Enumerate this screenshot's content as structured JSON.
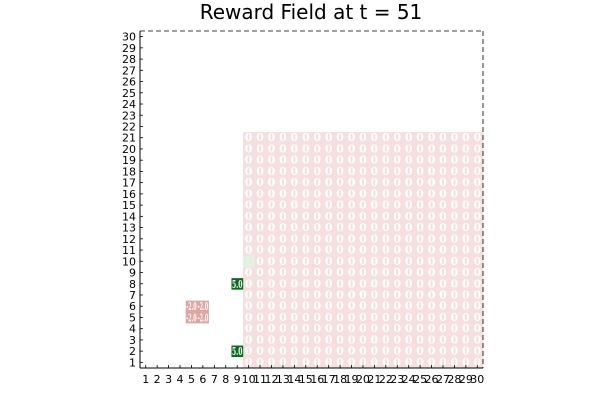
{
  "chart_data": {
    "type": "heatmap",
    "title": "Reward Field at t = 51",
    "xlabel": "",
    "ylabel": "",
    "xlim": [
      1,
      30
    ],
    "ylim": [
      1,
      30
    ],
    "x_ticks": [
      "1",
      "2",
      "3",
      "4",
      "5",
      "6",
      "7",
      "8",
      "9",
      "10",
      "11",
      "12",
      "13",
      "14",
      "15",
      "16",
      "17",
      "18",
      "19",
      "20",
      "21",
      "22",
      "23",
      "24",
      "25",
      "26",
      "27",
      "28",
      "29",
      "30"
    ],
    "y_ticks": [
      "1",
      "2",
      "3",
      "4",
      "5",
      "6",
      "7",
      "8",
      "9",
      "10",
      "11",
      "12",
      "13",
      "14",
      "15",
      "16",
      "17",
      "18",
      "19",
      "20",
      "21",
      "22",
      "23",
      "24",
      "25",
      "26",
      "27",
      "28",
      "29",
      "30"
    ],
    "grid": false,
    "colors": {
      "background_field": "#f5dfdf",
      "field_text": "#ffffff",
      "cluster_fill": "#dea5a2",
      "cluster_text": "#ffffff",
      "hot_fill": "#0b6b1c",
      "hot_text": "#ffffff",
      "light_fill": "#e3f1e3",
      "light_text": "#ffffff"
    },
    "field_region": {
      "x_from": 10,
      "x_to": 30,
      "y_from": 1,
      "y_to": 21,
      "value": 0.0
    },
    "cells": [
      {
        "x": 5,
        "y": 5,
        "value": -0.5,
        "kind": "cluster",
        "label": "-2.0"
      },
      {
        "x": 5,
        "y": 6,
        "value": -0.5,
        "kind": "cluster",
        "label": "-2.0"
      },
      {
        "x": 6,
        "y": 5,
        "value": -0.5,
        "kind": "cluster",
        "label": "-2.0"
      },
      {
        "x": 6,
        "y": 6,
        "value": -0.5,
        "kind": "cluster",
        "label": "-2.0"
      },
      {
        "x": 9,
        "y": 2,
        "value": 5.0,
        "kind": "hot",
        "label": "5.0"
      },
      {
        "x": 9,
        "y": 8,
        "value": 5.0,
        "kind": "hot",
        "label": "5.0"
      },
      {
        "x": 10,
        "y": 10,
        "value": 0.5,
        "kind": "light",
        "label": ""
      }
    ]
  }
}
